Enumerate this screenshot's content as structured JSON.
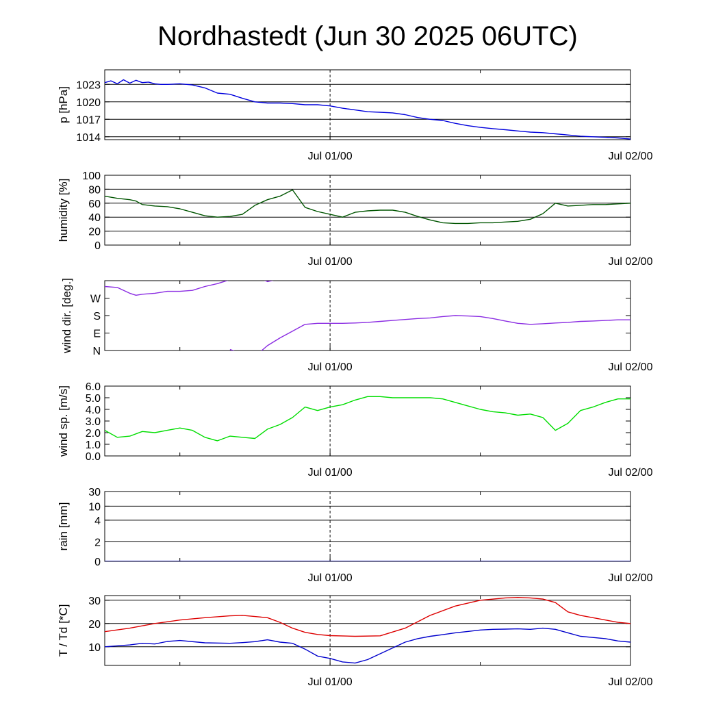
{
  "title": "Nordhastedt (Jun 30 2025 06UTC)",
  "x_axis": {
    "start": "Jun 30 06:00",
    "end": "Jul 02 00:00",
    "ticks": [
      "Jul 01/00",
      "Jul 02/00"
    ],
    "minor_ticks_hours": [
      "Jun 30/12",
      "Jul 01/12"
    ]
  },
  "chart_data": [
    {
      "type": "line",
      "ylabel": "p [hPa]",
      "ylim": [
        1013.5,
        1025.5
      ],
      "yticks": [
        1014,
        1017,
        1020,
        1023
      ],
      "ytick_labels": [
        "1014",
        "1017",
        "1020",
        "1023"
      ],
      "grid_y": [
        1014,
        1017,
        1020,
        1023
      ],
      "series": [
        {
          "color": "#0000dd",
          "x": [
            0,
            0.5,
            1,
            1.5,
            2,
            2.5,
            3,
            3.5,
            4,
            4.5,
            5,
            6,
            7,
            8,
            9,
            10,
            11,
            12,
            13,
            14,
            15,
            16,
            17,
            18,
            19,
            20,
            21,
            22,
            23,
            24,
            25,
            26,
            27,
            28,
            29,
            30,
            31,
            32,
            33,
            34,
            35,
            36,
            37,
            38,
            39,
            40,
            41,
            42
          ],
          "y": [
            1023.3,
            1023.6,
            1023.1,
            1023.8,
            1023.2,
            1023.7,
            1023.3,
            1023.4,
            1023.1,
            1023.0,
            1023.0,
            1023.1,
            1022.9,
            1022.4,
            1021.5,
            1021.3,
            1020.6,
            1020.0,
            1019.8,
            1019.8,
            1019.7,
            1019.5,
            1019.5,
            1019.3,
            1018.9,
            1018.6,
            1018.3,
            1018.2,
            1018.1,
            1017.8,
            1017.3,
            1017.0,
            1016.8,
            1016.3,
            1015.9,
            1015.6,
            1015.4,
            1015.2,
            1015.0,
            1014.8,
            1014.7,
            1014.5,
            1014.3,
            1014.1,
            1014.0,
            1013.9,
            1013.8,
            1013.6
          ]
        }
      ]
    },
    {
      "type": "line",
      "ylabel": "humidity [%]",
      "ylim": [
        0,
        100
      ],
      "yticks": [
        0,
        20,
        40,
        60,
        80,
        100
      ],
      "ytick_labels": [
        "0",
        "20",
        "40",
        "60",
        "80",
        "100"
      ],
      "grid_y": [
        20,
        40,
        60,
        80
      ],
      "series": [
        {
          "color": "#005500",
          "x": [
            0,
            1,
            2,
            2.5,
            3,
            4,
            5,
            6,
            7,
            8,
            9,
            10,
            11,
            12,
            13,
            14,
            15,
            16,
            17,
            18,
            19,
            20,
            21,
            22,
            23,
            24,
            25,
            26,
            27,
            28,
            29,
            30,
            31,
            32,
            33,
            34,
            35,
            36,
            37,
            38,
            39,
            40,
            41,
            42
          ],
          "y": [
            70,
            67,
            65,
            63,
            58,
            56,
            55,
            52,
            47,
            42,
            40,
            41,
            44,
            57,
            65,
            70,
            79,
            54,
            48,
            44,
            40,
            47,
            49,
            50,
            50,
            47,
            41,
            36,
            32,
            31,
            31,
            32,
            32,
            33,
            34,
            37,
            45,
            60,
            56,
            57,
            58,
            58,
            59,
            60
          ]
        }
      ]
    },
    {
      "type": "line",
      "ylabel": "wind dir. [deg.]",
      "ylim": [
        0,
        360
      ],
      "yticks": [
        0,
        90,
        180,
        270
      ],
      "ytick_labels": [
        "N",
        "E",
        "S",
        "W"
      ],
      "grid_y": [],
      "series": [
        {
          "color": "#8a2be2",
          "x": [
            0,
            1,
            2,
            2.5,
            3,
            4,
            5,
            6,
            7,
            8,
            9,
            10,
            11,
            12,
            12.5,
            13,
            14
          ],
          "y": [
            330,
            325,
            295,
            285,
            290,
            295,
            305,
            305,
            310,
            330,
            345,
            365,
            365,
            380,
            370,
            355,
            370
          ]
        },
        {
          "color": "#8a2be2",
          "x": [
            10,
            11,
            12,
            13,
            14,
            15,
            16,
            17,
            18,
            19,
            20,
            21,
            22,
            23,
            24,
            25,
            26,
            27,
            28,
            29,
            30,
            31,
            32,
            33,
            34,
            35,
            36,
            37,
            38,
            39,
            40,
            41,
            42
          ],
          "y": [
            5,
            -15,
            -30,
            25,
            65,
            100,
            135,
            140,
            140,
            140,
            142,
            145,
            150,
            155,
            160,
            165,
            168,
            175,
            180,
            178,
            175,
            165,
            152,
            140,
            135,
            138,
            142,
            145,
            150,
            152,
            155,
            158,
            158
          ]
        }
      ]
    },
    {
      "type": "line",
      "ylabel": "wind sp. [m/s]",
      "ylim": [
        0,
        6
      ],
      "yticks": [
        0,
        1,
        2,
        3,
        4,
        5,
        6
      ],
      "ytick_labels": [
        "0.0",
        "1.0",
        "2.0",
        "3.0",
        "4.0",
        "5.0",
        "6.0"
      ],
      "grid_y": [],
      "series": [
        {
          "color": "#00dd00",
          "x": [
            0,
            1,
            2,
            3,
            4,
            5,
            6,
            7,
            8,
            9,
            10,
            11,
            12,
            13,
            14,
            15,
            16,
            17,
            18,
            19,
            20,
            21,
            22,
            23,
            24,
            25,
            26,
            27,
            28,
            29,
            30,
            31,
            32,
            33,
            34,
            35,
            36,
            37,
            38,
            39,
            40,
            41,
            42
          ],
          "y": [
            2.2,
            1.6,
            1.7,
            2.1,
            2.0,
            2.2,
            2.4,
            2.2,
            1.6,
            1.3,
            1.7,
            1.6,
            1.5,
            2.3,
            2.7,
            3.3,
            4.2,
            3.9,
            4.2,
            4.4,
            4.8,
            5.1,
            5.1,
            5.0,
            5.0,
            5.0,
            5.0,
            4.9,
            4.6,
            4.3,
            4.0,
            3.8,
            3.7,
            3.5,
            3.6,
            3.3,
            2.2,
            2.8,
            3.9,
            4.2,
            4.6,
            4.9,
            4.9
          ]
        }
      ]
    },
    {
      "type": "line",
      "ylabel": "rain [mm]",
      "yticks": [
        0,
        2,
        4,
        10,
        30
      ],
      "ytick_labels": [
        "0",
        "2",
        "4",
        "10",
        "30"
      ],
      "grid_y": [
        2,
        4,
        10,
        30
      ],
      "series": [
        {
          "color": "#0000aa",
          "x": [
            0,
            42
          ],
          "y": [
            0,
            0
          ]
        }
      ]
    },
    {
      "type": "line",
      "ylabel": "T / Td [*C]",
      "ylim": [
        2,
        32
      ],
      "yticks": [
        10,
        20,
        30
      ],
      "ytick_labels": [
        "10",
        "20",
        "30"
      ],
      "grid_y": [
        10,
        20,
        30
      ],
      "series": [
        {
          "color": "#dd0000",
          "x": [
            0,
            2,
            4,
            6,
            8,
            10,
            11,
            12,
            13,
            14,
            15,
            16,
            17,
            18,
            20,
            22,
            24,
            26,
            28,
            30,
            32,
            33,
            34,
            35,
            36,
            37,
            38,
            39,
            40,
            41,
            42
          ],
          "y": [
            16.5,
            18,
            20,
            21.5,
            22.5,
            23.3,
            23.5,
            23.0,
            22.5,
            20.5,
            18,
            16.2,
            15.3,
            14.8,
            14.5,
            14.7,
            18,
            23.5,
            27.5,
            30,
            31,
            31.2,
            31.0,
            30.5,
            29,
            25,
            23.5,
            22.5,
            21.5,
            20.5,
            20
          ]
        },
        {
          "color": "#0000cc",
          "x": [
            0,
            2,
            3,
            4,
            5,
            6,
            8,
            10,
            11,
            12,
            13,
            14,
            15,
            16,
            17,
            18,
            19,
            20,
            21,
            22,
            23,
            24,
            25,
            26,
            27,
            28,
            29,
            30,
            31,
            32,
            33,
            34,
            35,
            36,
            37,
            38,
            39,
            40,
            41,
            42
          ],
          "y": [
            10,
            10.8,
            11.5,
            11.2,
            12.3,
            12.7,
            11.7,
            11.5,
            11.8,
            12.2,
            13,
            12,
            11.5,
            9,
            6,
            5,
            3.5,
            3,
            4.5,
            7,
            9.5,
            12,
            13.5,
            14.5,
            15.2,
            16,
            16.6,
            17.2,
            17.5,
            17.6,
            17.7,
            17.5,
            18,
            17.5,
            16,
            14.5,
            14,
            13.5,
            12.5,
            12
          ]
        }
      ]
    }
  ]
}
